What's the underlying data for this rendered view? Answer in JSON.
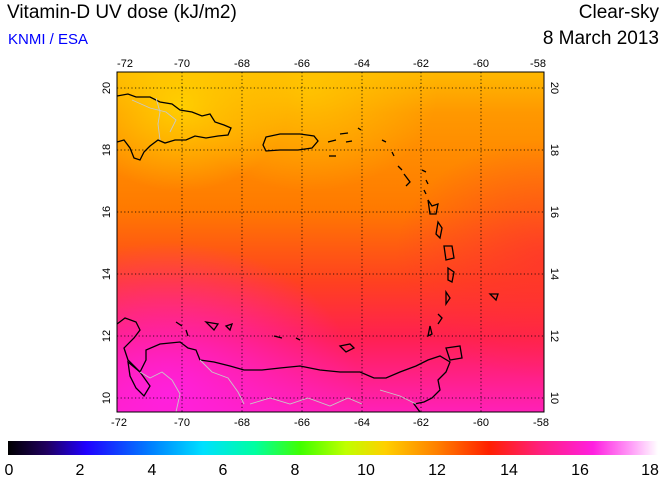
{
  "header": {
    "title": "Vitamin-D UV dose (kJ/m2)",
    "credit": "KNMI / ESA",
    "scenario": "Clear-sky",
    "date": "8 March 2013"
  },
  "map": {
    "lon_labels": [
      "-72",
      "-70",
      "-68",
      "-66",
      "-64",
      "-62",
      "-60",
      "-58"
    ],
    "lat_labels": [
      "20",
      "18",
      "16",
      "14",
      "12",
      "10"
    ]
  },
  "colorbar": {
    "labels": [
      "0",
      "2",
      "4",
      "6",
      "8",
      "10",
      "12",
      "14",
      "16",
      "18"
    ]
  },
  "colors": {
    "ocean_orange": "#ff8a00",
    "north_yellow": "#ffc000",
    "south_red": "#ff2048",
    "south_magenta": "#ff20c8",
    "coastline": "#000000",
    "borders": "#c0c0c0",
    "credit_blue": "#0000ff"
  }
}
